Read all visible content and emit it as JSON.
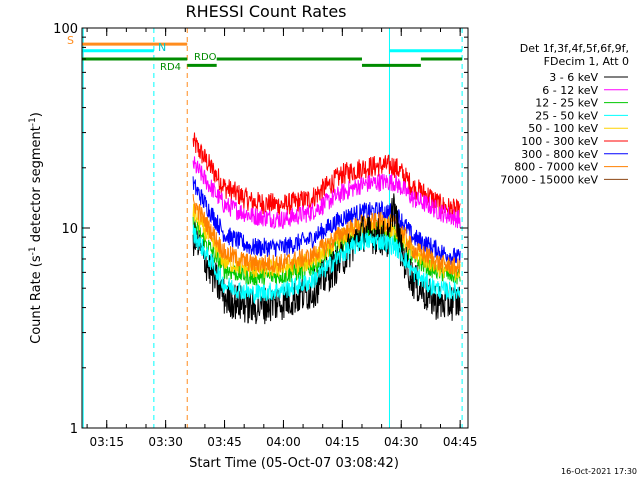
{
  "chart_data": {
    "type": "line",
    "title": "RHESSI Count Rates",
    "xlabel": "Start Time (05-Oct-07 03:08:42)",
    "ylabel": "Count Rate (s⁻¹ detector segment⁻¹)",
    "ylabel_main": "Count Rate (s",
    "ylabel_sup1": "-1",
    "ylabel_mid": " detector segment",
    "ylabel_sup2": "-1",
    "ylabel_end": ")",
    "y_scale": "log",
    "ylim": [
      1,
      100
    ],
    "xlim": [
      "03:08:42",
      "04:47:00"
    ],
    "x_ticks": [
      "03:15",
      "03:30",
      "03:45",
      "04:00",
      "04:15",
      "04:30",
      "04:45"
    ],
    "y_ticks": [
      "1",
      "10",
      "100"
    ],
    "legend_header": [
      "Det 1f,3f,4f,5f,6f,9f,",
      "FDecim 1, Att 0"
    ],
    "legend_position": "right",
    "timestamp": "16-Oct-2021 17:30",
    "annotations": {
      "S": "S",
      "N": "N",
      "RD4": "RD4",
      "RDO": "RDO"
    },
    "x_times": [
      "03:37",
      "03:45",
      "03:52",
      "04:00",
      "04:07",
      "04:15",
      "04:20",
      "04:25",
      "04:27",
      "04:28",
      "04:30",
      "04:33",
      "04:37",
      "04:40",
      "04:45"
    ],
    "series": [
      {
        "name": "3 - 6 keV",
        "color": "#000000",
        "values": [
          9.0,
          4.5,
          4.0,
          4.3,
          4.8,
          7.0,
          9.5,
          9.0,
          8.5,
          14.0,
          7.5,
          5.5,
          4.5,
          4.2,
          4.3
        ]
      },
      {
        "name": "6 - 12 keV",
        "color": "#ff00ff",
        "values": [
          21.0,
          13.0,
          11.5,
          11.0,
          12.0,
          15.0,
          16.5,
          17.0,
          17.0,
          17.0,
          16.0,
          14.0,
          13.0,
          12.0,
          11.0
        ]
      },
      {
        "name": "12 - 25 keV",
        "color": "#00c800",
        "values": [
          10.5,
          6.2,
          5.7,
          5.8,
          6.3,
          8.4,
          9.5,
          9.8,
          9.5,
          9.5,
          8.7,
          7.0,
          6.4,
          6.0,
          5.7
        ]
      },
      {
        "name": "25 - 50 keV",
        "color": "#00ffff",
        "values": [
          9.5,
          5.2,
          4.7,
          4.9,
          5.4,
          7.4,
          8.6,
          8.6,
          8.3,
          8.2,
          7.5,
          6.0,
          5.2,
          4.9,
          4.8
        ]
      },
      {
        "name": "50 - 100 keV",
        "color": "#ffd200",
        "values": [
          12.0,
          6.8,
          6.2,
          6.3,
          6.8,
          9.0,
          10.0,
          10.2,
          10.0,
          10.0,
          9.2,
          7.4,
          6.8,
          6.3,
          6.0
        ]
      },
      {
        "name": "100 - 300 keV",
        "color": "#ff0000",
        "values": [
          27.0,
          16.0,
          13.5,
          13.0,
          14.0,
          18.5,
          20.0,
          20.5,
          20.5,
          20.5,
          19.0,
          16.0,
          14.5,
          13.0,
          12.0
        ]
      },
      {
        "name": "300 - 800 keV",
        "color": "#0000ff",
        "values": [
          16.5,
          9.3,
          8.0,
          8.0,
          8.8,
          11.2,
          12.0,
          12.2,
          12.0,
          12.0,
          11.0,
          9.0,
          8.2,
          7.6,
          7.0
        ]
      },
      {
        "name": "800 - 7000 keV",
        "color": "#ff8000",
        "values": [
          13.5,
          7.5,
          6.6,
          6.7,
          7.2,
          9.5,
          10.5,
          10.8,
          10.5,
          10.5,
          9.7,
          7.8,
          7.2,
          6.6,
          6.3
        ]
      },
      {
        "name": "7000 - 15000 keV",
        "color": "#8b4513",
        "values": [
          0,
          0,
          0,
          0,
          0,
          0,
          0,
          0,
          0,
          0,
          0,
          0,
          0,
          0,
          0
        ]
      }
    ],
    "bars": [
      {
        "label": "S",
        "color": "#ff8c1e",
        "level": 83,
        "start": "03:08:42",
        "end": "03:35:30"
      },
      {
        "label": "N",
        "color": "#00ffff",
        "level": 77,
        "start": "03:08:42",
        "end": "03:27:00"
      },
      {
        "label": "N",
        "color": "#00ffff",
        "level": 77,
        "start": "04:27:00",
        "end": "04:45:30"
      },
      {
        "label": "RD4",
        "color": "#008c00",
        "level": 70,
        "start": "03:08:42",
        "end": "03:35:30"
      },
      {
        "label": "RDO",
        "color": "#008c00",
        "level": 65,
        "start": "03:35:30",
        "end": "03:43:00"
      },
      {
        "label": "RDO",
        "color": "#008c00",
        "level": 70,
        "start": "03:43:00",
        "end": "04:20:00"
      },
      {
        "label": "RDO",
        "color": "#008c00",
        "level": 65,
        "start": "04:20:00",
        "end": "04:35:00"
      },
      {
        "label": "RDO",
        "color": "#008c00",
        "level": 70,
        "start": "04:35:00",
        "end": "04:45:30"
      }
    ],
    "markers": [
      {
        "time": "03:09:00",
        "color": "#00ffff",
        "style": "solid"
      },
      {
        "time": "03:27:00",
        "color": "#00ffff",
        "style": "dashed"
      },
      {
        "time": "03:35:30",
        "color": "#ff8c1e",
        "style": "dashed"
      },
      {
        "time": "04:27:00",
        "color": "#00ffff",
        "style": "solid"
      },
      {
        "time": "04:45:30",
        "color": "#00ffff",
        "style": "dashed"
      }
    ]
  }
}
